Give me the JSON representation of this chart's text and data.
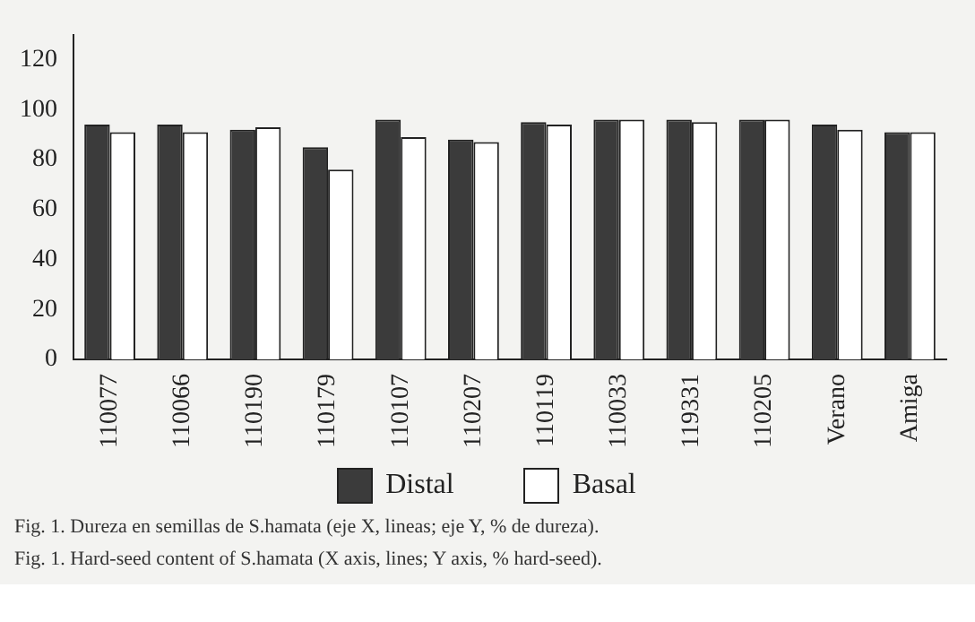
{
  "chart_data": {
    "type": "bar",
    "categories": [
      "110077",
      "110066",
      "110190",
      "110179",
      "110107",
      "110207",
      "110119",
      "110033",
      "119331",
      "110205",
      "Verano",
      "Amiga"
    ],
    "series": [
      {
        "name": "Distal",
        "color": "#3b3b3b",
        "values": [
          94,
          94,
          92,
          85,
          96,
          88,
          95,
          96,
          96,
          96,
          94,
          91
        ]
      },
      {
        "name": "Basal",
        "color": "#ffffff",
        "values": [
          91,
          91,
          93,
          76,
          89,
          87,
          94,
          96,
          95,
          96,
          92,
          91
        ]
      }
    ],
    "ylim": [
      0,
      130
    ],
    "yticks": [
      0,
      20,
      40,
      60,
      80,
      100,
      120
    ],
    "grid": false,
    "legend": "bottom",
    "annotations": [
      "Fig. 1. Dureza en semillas de S.hamata  (eje X, lineas; eje Y, % de dureza).",
      "Fig. 1. Hard-seed content of S.hamata  (X axis, lines; Y axis,  % hard-seed)."
    ]
  }
}
